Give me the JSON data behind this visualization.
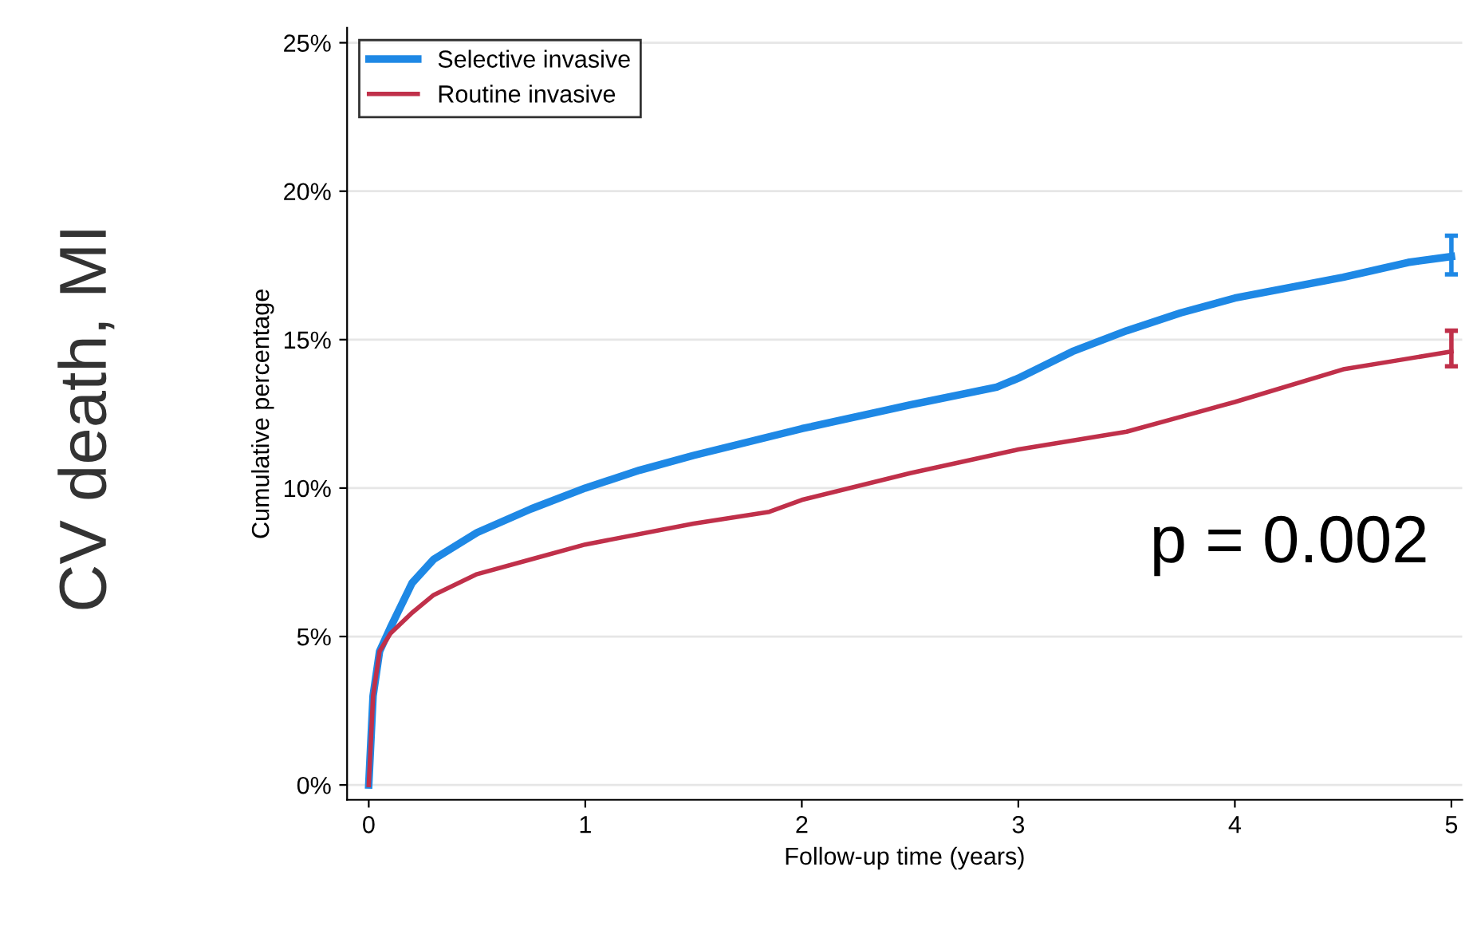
{
  "chart_data": {
    "type": "line",
    "title": "CV death, MI",
    "xlabel": "Follow-up time (years)",
    "ylabel": "Cumulative percentage",
    "annotations": [
      "p = 0.002"
    ],
    "series": [
      {
        "name": "Selective invasive",
        "color": "#1e88e5",
        "x": [
          0,
          0.02,
          0.05,
          0.1,
          0.2,
          0.3,
          0.5,
          0.75,
          1.0,
          1.25,
          1.5,
          2.0,
          2.5,
          2.9,
          3.0,
          3.25,
          3.5,
          3.75,
          4.0,
          4.5,
          4.8,
          5.0
        ],
        "values": [
          0,
          3,
          4.5,
          5.3,
          6.8,
          7.6,
          8.5,
          9.3,
          10.0,
          10.6,
          11.1,
          12.0,
          12.8,
          13.4,
          13.7,
          14.6,
          15.3,
          15.9,
          16.4,
          17.1,
          17.6,
          17.8
        ],
        "errors": [
          null,
          null,
          null,
          null,
          null,
          null,
          null,
          null,
          null,
          null,
          null,
          null,
          null,
          null,
          null,
          null,
          null,
          null,
          null,
          null,
          null,
          [
            17.2,
            18.5
          ]
        ]
      },
      {
        "name": "Routine invasive",
        "color": "#c0304a",
        "x": [
          0,
          0.02,
          0.05,
          0.1,
          0.2,
          0.3,
          0.5,
          0.75,
          1.0,
          1.5,
          1.85,
          2.0,
          2.5,
          3.0,
          3.5,
          3.75,
          4.0,
          4.5,
          4.75,
          5.0
        ],
        "values": [
          0,
          3,
          4.5,
          5.1,
          5.8,
          6.4,
          7.1,
          7.6,
          8.1,
          8.8,
          9.2,
          9.6,
          10.5,
          11.3,
          11.9,
          12.4,
          12.9,
          14.0,
          14.3,
          14.6
        ],
        "errors": [
          null,
          null,
          null,
          null,
          null,
          null,
          null,
          null,
          null,
          null,
          null,
          null,
          null,
          null,
          null,
          null,
          null,
          null,
          null,
          [
            14.1,
            15.3
          ]
        ]
      }
    ],
    "xlim": [
      -0.1,
      5.05
    ],
    "xticks": [
      0,
      1,
      2,
      3,
      4,
      5
    ],
    "ylim": [
      -0.5,
      25.5
    ],
    "yticks": [
      {
        "value": 0,
        "label": "0%"
      },
      {
        "value": 5,
        "label": "5%"
      },
      {
        "value": 10,
        "label": "10%"
      },
      {
        "value": 15,
        "label": "15%"
      },
      {
        "value": 20,
        "label": "20%"
      },
      {
        "value": 25,
        "label": "25%"
      }
    ],
    "grid": "y",
    "legend": "top left",
    "marker": "none",
    "line_style": "solid"
  }
}
